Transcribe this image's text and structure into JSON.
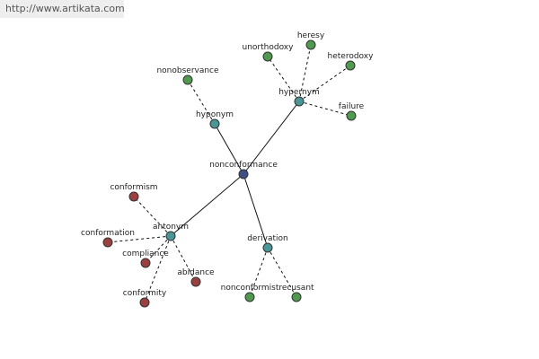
{
  "watermark": "http://www.artikata.com",
  "nodes": [
    {
      "label": "nonconformance"
    },
    {
      "label": "hyponym"
    },
    {
      "label": "hypernym"
    },
    {
      "label": "antonym"
    },
    {
      "label": "derivation"
    },
    {
      "label": "nonobservance"
    },
    {
      "label": "unorthodoxy"
    },
    {
      "label": "heresy"
    },
    {
      "label": "heterodoxy"
    },
    {
      "label": "failure"
    },
    {
      "label": "conformism"
    },
    {
      "label": "conformation"
    },
    {
      "label": "compliance"
    },
    {
      "label": "abidance"
    },
    {
      "label": "conformity"
    },
    {
      "label": "nonconformist"
    },
    {
      "label": "recusant"
    }
  ]
}
